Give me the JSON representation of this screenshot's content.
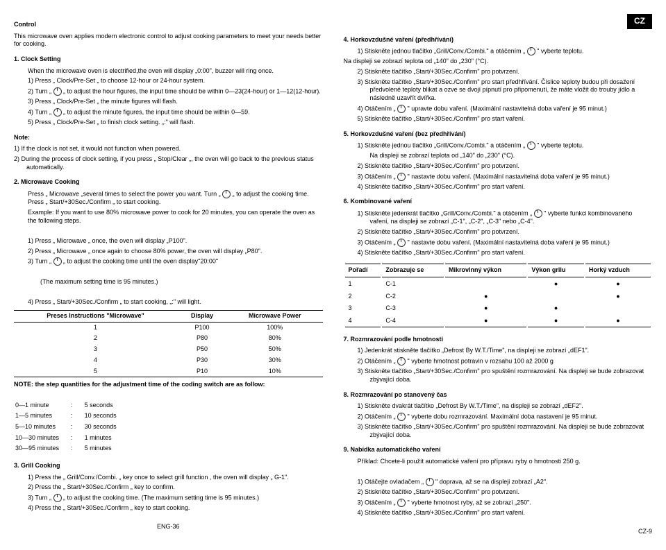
{
  "badge": "CZ",
  "left": {
    "control_title": "Control",
    "control_intro": "This microwave oven applies modern electronic control to adjust cooking parameters to meet your needs better for cooking.",
    "s1_title": "1.    Clock Setting",
    "s1_intro": "When the microwave oven is electrified,the oven will display „0:00\", buzzer will ring once.",
    "s1_1": "1)  Press „ Clock/Pre-Set „ to choose 12-hour or 24-hour system.",
    "s1_2": "2)  Turn „ ",
    "s1_2b": " „ to adjust the hour figures, the input time should be within 0—23(24-hour) or 1—12(12-hour).",
    "s1_3": "3)  Press „ Clock/Pre-Set „ the minute figures will flash.",
    "s1_4": "4)  Turn „ ",
    "s1_4b": " „ to adjust the minute figures, the input time should be within 0—59.",
    "s1_5": "5)  Press „ Clock/Pre-Set „ to finish clock setting. „:\" will flash.",
    "note_title": "Note:",
    "note_1": "1)  If the clock is not set, it would not function when powered.",
    "note_2": "2)  During the process of clock setting, if you press „ Stop/Clear „, the oven will go back to the previous status automatically.",
    "s2_title": "2.    Microwave Cooking",
    "s2_a": "Press „ Microwave „several times to select the power you want. Turn „ ",
    "s2_ab": " „ to adjust the cooking time. Press „ Start/+30Sec./Confirm „ to start cooking.",
    "s2_b": "Example: If you want to use 80% microwave power to cook for 20 minutes, you can operate the oven as the following steps.",
    "s2_1": "1)  Press „ Microwave „ once, the oven will display „P100\".",
    "s2_2": "2)  Press „ Microwave „ once again to choose 80% power, the oven will display „P80\".",
    "s2_3": "3)  Turn „ ",
    "s2_3b": " „ to adjust the cooking time until the oven display\"20:00\"",
    "s2_max": "(The maximum setting time is 95 minutes.)",
    "s2_4": "4)  Press „ Start/+30Sec./Confirm „ to start cooking, „:\" will light.",
    "table_headers": [
      "Preses Instructions \"Microwave\"",
      "Display",
      "Microwave Power"
    ],
    "table_rows": [
      [
        "1",
        "P100",
        "100%"
      ],
      [
        "2",
        "P80",
        "80%"
      ],
      [
        "3",
        "P50",
        "50%"
      ],
      [
        "4",
        "P30",
        "30%"
      ],
      [
        "5",
        "P10",
        "10%"
      ]
    ],
    "note2": "NOTE: the step quantities for the adjustment time of the coding switch are as follow:",
    "steps": [
      [
        "0—1 minute",
        ":",
        "5 seconds"
      ],
      [
        "1—5 minutes",
        ":",
        "10 seconds"
      ],
      [
        "5—10 minutes",
        ":",
        "30 seconds"
      ],
      [
        "10—30 minutes",
        ":",
        "1 minutes"
      ],
      [
        "30—95 minutes",
        ":",
        "5 minutes"
      ]
    ],
    "s3_title": "3.    Grill Cooking",
    "s3_1": "1)  Press the „ Grill/Conv./Combi. „ key once to select grill function , the oven will display „ G-1\".",
    "s3_2": "2)  Press the „ Start/+30Sec./Confirm „ key to confirm.",
    "s3_3": "3)  Turn „ ",
    "s3_3b": " „ to adjust the cooking time. (The maximum setting time is 95 minutes.)",
    "s3_4": "4)  Press the „ Start/+30Sec./Confirm „ key to start cooking.",
    "footer": "ENG-36"
  },
  "right": {
    "s4_title": "4.    Horkovzdušné vaření (předhřívání)",
    "s4_1": "1)   Stiskněte jednou tlačítko „Grill/Conv./Combi.\" a otáčením „ ",
    "s4_1b": " \" vyberte teplotu.",
    "s4_disp": "Na displeji se zobrazí teplota od „140\" do „230\" (°C).",
    "s4_2": "2)   Stiskněte tlačítko „Start/+30Sec./Confirm\" pro potvrzení.",
    "s4_3": "3)   Stiskněte tlačítko „Start/+30Sec./Confirm\" pro start předhřívání. Číslice teploty budou při dosažení předvolené teploty blikat a ozve se dvojí pípnutí pro připomenutí, že máte vložit do trouby jídlo a následně uzavřít dvířka.",
    "s4_4": "4)   Otáčením „ ",
    "s4_4b": " \" upravte dobu vaření. (Maximální nastavitelná doba vaření je 95 minut.)",
    "s4_5": "5)   Stiskněte tlačítko „Start/+30Sec./Confirm\" pro start vaření.",
    "s5_title": "5.    Horkovzdušné vaření (bez předhřívání)",
    "s5_1": "1)   Stiskněte jednou tlačítko „Grill/Conv./Combi.\" a otáčením „ ",
    "s5_1b": " \" vyberte teplotu.",
    "s5_disp": "Na displeji se zobrazí teplota od „140\" do „230\" (°C).",
    "s5_2": "2)   Stiskněte tlačítko „Start/+30Sec./Confirm\" pro potvrzení.",
    "s5_3": "3)   Otáčením „ ",
    "s5_3b": " \" nastavte dobu vaření. (Maximální nastavitelná doba vaření je 95 minut.)",
    "s5_4": "4)   Stiskněte tlačítko „Start/+30Sec./Confirm\" pro start vaření.",
    "s6_title": "6.    Kombinované vaření",
    "s6_1": "1)   Stiskněte jedenkrát tlačítko „Grill/Conv./Combi.\" a otáčením „ ",
    "s6_1b": " \" vyberte funkci kombinovaného vaření, na displeji se zobrazí „C-1\", „C-2\", „C-3\" nebo „C-4\".",
    "s6_2": "2)   Stiskněte tlačítko „Start/+30Sec./Confirm\" pro potvrzení.",
    "s6_3": "3)   Otáčením „ ",
    "s6_3b": " \" nastavte dobu vaření. (Maximální nastavitelná doba vaření je 95 minut.)",
    "s6_4": "4)   Stiskněte tlačítko „Start/+30Sec./Confirm\" pro start vaření.",
    "combo_headers": [
      "Pořadí",
      "Zobrazuje se",
      "Mikrovlnný výkon",
      "Výkon grilu",
      "Horký vzduch"
    ],
    "combo_rows": [
      [
        "1",
        "C-1",
        "",
        "●",
        "●"
      ],
      [
        "2",
        "C-2",
        "●",
        "",
        "●"
      ],
      [
        "3",
        "C-3",
        "●",
        "●",
        ""
      ],
      [
        "4",
        "C-4",
        "●",
        "●",
        "●"
      ]
    ],
    "s7_title": "7.    Rozmrazování podle hmotnosti",
    "s7_1": "1)   Jedenkrát stiskněte tlačítko „Defrost By W.T./Time\", na displeji se zobrazí „dEF1\".",
    "s7_2": "2)   Otáčením „ ",
    "s7_2b": " \" vyberte hmotnost potravin v rozsahu 100 až 2000 g",
    "s7_3": "3)   Stiskněte tlačítko „Start/+30Sec./Confirm\" pro spuštění rozmrazování. Na displeji se bude zobrazovat zbývající doba.",
    "s8_title": "8.    Rozmrazování po stanovený čas",
    "s8_1": "1)   Stiskněte dvakrát tlačítko „Defrost By W.T./Time\", na displeji se zobrazí „dEF2\".",
    "s8_2": "2)   Otáčením „ ",
    "s8_2b": " \" vyberte dobu rozmrazování. Maximální doba nastavení je 95 minut.",
    "s8_3": "3)   Stiskněte tlačítko „Start/+30Sec./Confirm\" pro spuštění rozmrazování. Na displeji se bude zobrazovat zbývající doba.",
    "s9_title": "9.    Nabídka automatického vaření",
    "s9_intro": "Příklad: Chcete-li použít automatické vaření pro přípravu ryby o hmotnosti 250 g.",
    "s9_1": "1)   Otáčejte ovladačem „ ",
    "s9_1b": " \" doprava, až se na displeji zobrazí „A2\".",
    "s9_2": "2)   Stiskněte tlačítko „Start/+30Sec./Confirm\" pro potvrzení.",
    "s9_3": "3)   Otáčením „ ",
    "s9_3b": " \" vyberte hmotnost ryby, až se zobrazí „250\".",
    "s9_4": "4)   Stiskněte tlačítko „Start/+30Sec./Confirm\" pro start vaření.",
    "footer": "CZ-9"
  }
}
